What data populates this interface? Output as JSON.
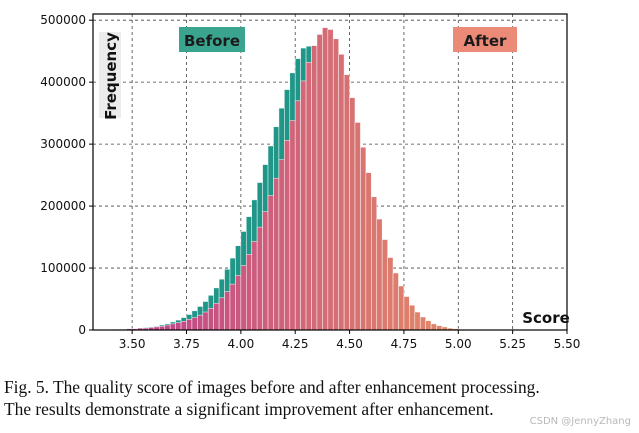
{
  "chart_data": {
    "type": "bar",
    "subtype": "overlaid-histogram",
    "xlabel": "Score",
    "ylabel": "Frequency",
    "xlim": [
      3.32,
      5.5
    ],
    "ylim": [
      0,
      510000
    ],
    "xticks": [
      "3.50",
      "3.75",
      "4.00",
      "4.25",
      "4.50",
      "4.75",
      "5.00",
      "5.25",
      "5.50"
    ],
    "yticks": [
      "0",
      "100000",
      "200000",
      "300000",
      "400000",
      "500000"
    ],
    "grid": true,
    "bin_width": 0.025,
    "series": [
      {
        "name": "Before",
        "color": "#1f9688",
        "label_bg": "#3aa48f",
        "label_fg": "#1b1b1b",
        "bins_start": 3.3,
        "values": [
          0,
          0,
          0,
          0,
          1000,
          1000,
          1000,
          1000,
          2000,
          3000,
          4000,
          5000,
          6000,
          8000,
          10000,
          13000,
          16000,
          20000,
          25000,
          31000,
          38000,
          46000,
          56000,
          68000,
          82000,
          98000,
          116000,
          136000,
          159000,
          183000,
          210000,
          238000,
          267000,
          297000,
          328000,
          358000,
          388000,
          415000,
          438000,
          455000,
          458000,
          450000,
          425000,
          400000,
          370000,
          338000,
          305000,
          271000,
          238000,
          205000,
          174000,
          145000,
          118000,
          94000,
          73000,
          55000,
          40000,
          28000,
          19000,
          12000,
          7000,
          4000,
          2000,
          1000,
          0,
          0,
          0,
          0,
          0,
          0,
          0,
          0,
          0,
          0,
          0,
          0,
          0,
          0,
          0,
          0,
          0,
          0,
          0,
          0,
          0,
          0,
          0,
          0
        ]
      },
      {
        "name": "After",
        "color_from": "#b9398f",
        "color_to": "#f1a35a",
        "label_bg": "#ec8a78",
        "label_fg": "#1b1b1b",
        "bins_start": 3.3,
        "values": [
          0,
          0,
          0,
          0,
          1000,
          1000,
          1000,
          2000,
          2000,
          3000,
          3000,
          4000,
          5000,
          6000,
          8000,
          10000,
          12000,
          14000,
          17000,
          20000,
          24000,
          29000,
          35000,
          43000,
          52000,
          62000,
          74000,
          88000,
          104000,
          122000,
          143000,
          166000,
          191000,
          217000,
          245000,
          275000,
          306000,
          338000,
          370000,
          402000,
          432000,
          459000,
          477000,
          488000,
          485000,
          470000,
          445000,
          412000,
          375000,
          335000,
          295000,
          254000,
          215000,
          179000,
          146000,
          117000,
          92000,
          71000,
          54000,
          40000,
          29000,
          21000,
          15000,
          10000,
          7000,
          5000,
          3000,
          2000,
          1000,
          1000,
          0,
          0,
          0,
          0,
          0,
          0,
          0,
          0,
          0,
          0,
          0,
          0,
          0,
          0,
          0,
          0,
          0,
          0
        ]
      }
    ]
  },
  "caption": {
    "line1": "Fig. 5.  The quality score of images before and after enhancement processing.",
    "line2": "The results demonstrate a significant improvement after enhancement."
  },
  "watermark": "CSDN @JennyZhang"
}
